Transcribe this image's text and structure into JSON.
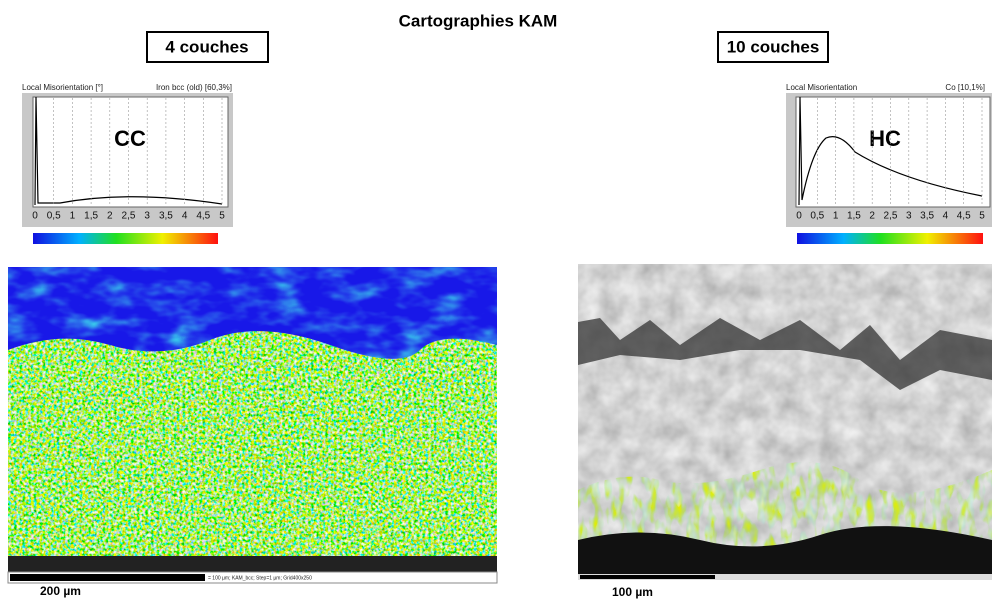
{
  "title": "Cartographies KAM",
  "panels": [
    {
      "label": "4 couches",
      "histogram": {
        "xlabel": "Local Misorientation [°]",
        "phase": "Iron bcc (old) [60,3%]",
        "code": "CC",
        "ticks": [
          "0",
          "0,5",
          "1",
          "1,5",
          "2",
          "2,5",
          "3",
          "3,5",
          "4",
          "4,5",
          "5"
        ]
      },
      "scalebar_info": "= 100 µm; KAM_bcc; Step=1 µm; Grid400x250",
      "scale": "200 µm"
    },
    {
      "label": "10 couches",
      "histogram": {
        "xlabel": "Local Misorientation",
        "phase": "Co [10,1%]",
        "code": "HC",
        "ticks": [
          "0",
          "0,5",
          "1",
          "1,5",
          "2",
          "2,5",
          "3",
          "3,5",
          "4",
          "4,5",
          "5"
        ]
      },
      "scale": "100 µm"
    }
  ]
}
